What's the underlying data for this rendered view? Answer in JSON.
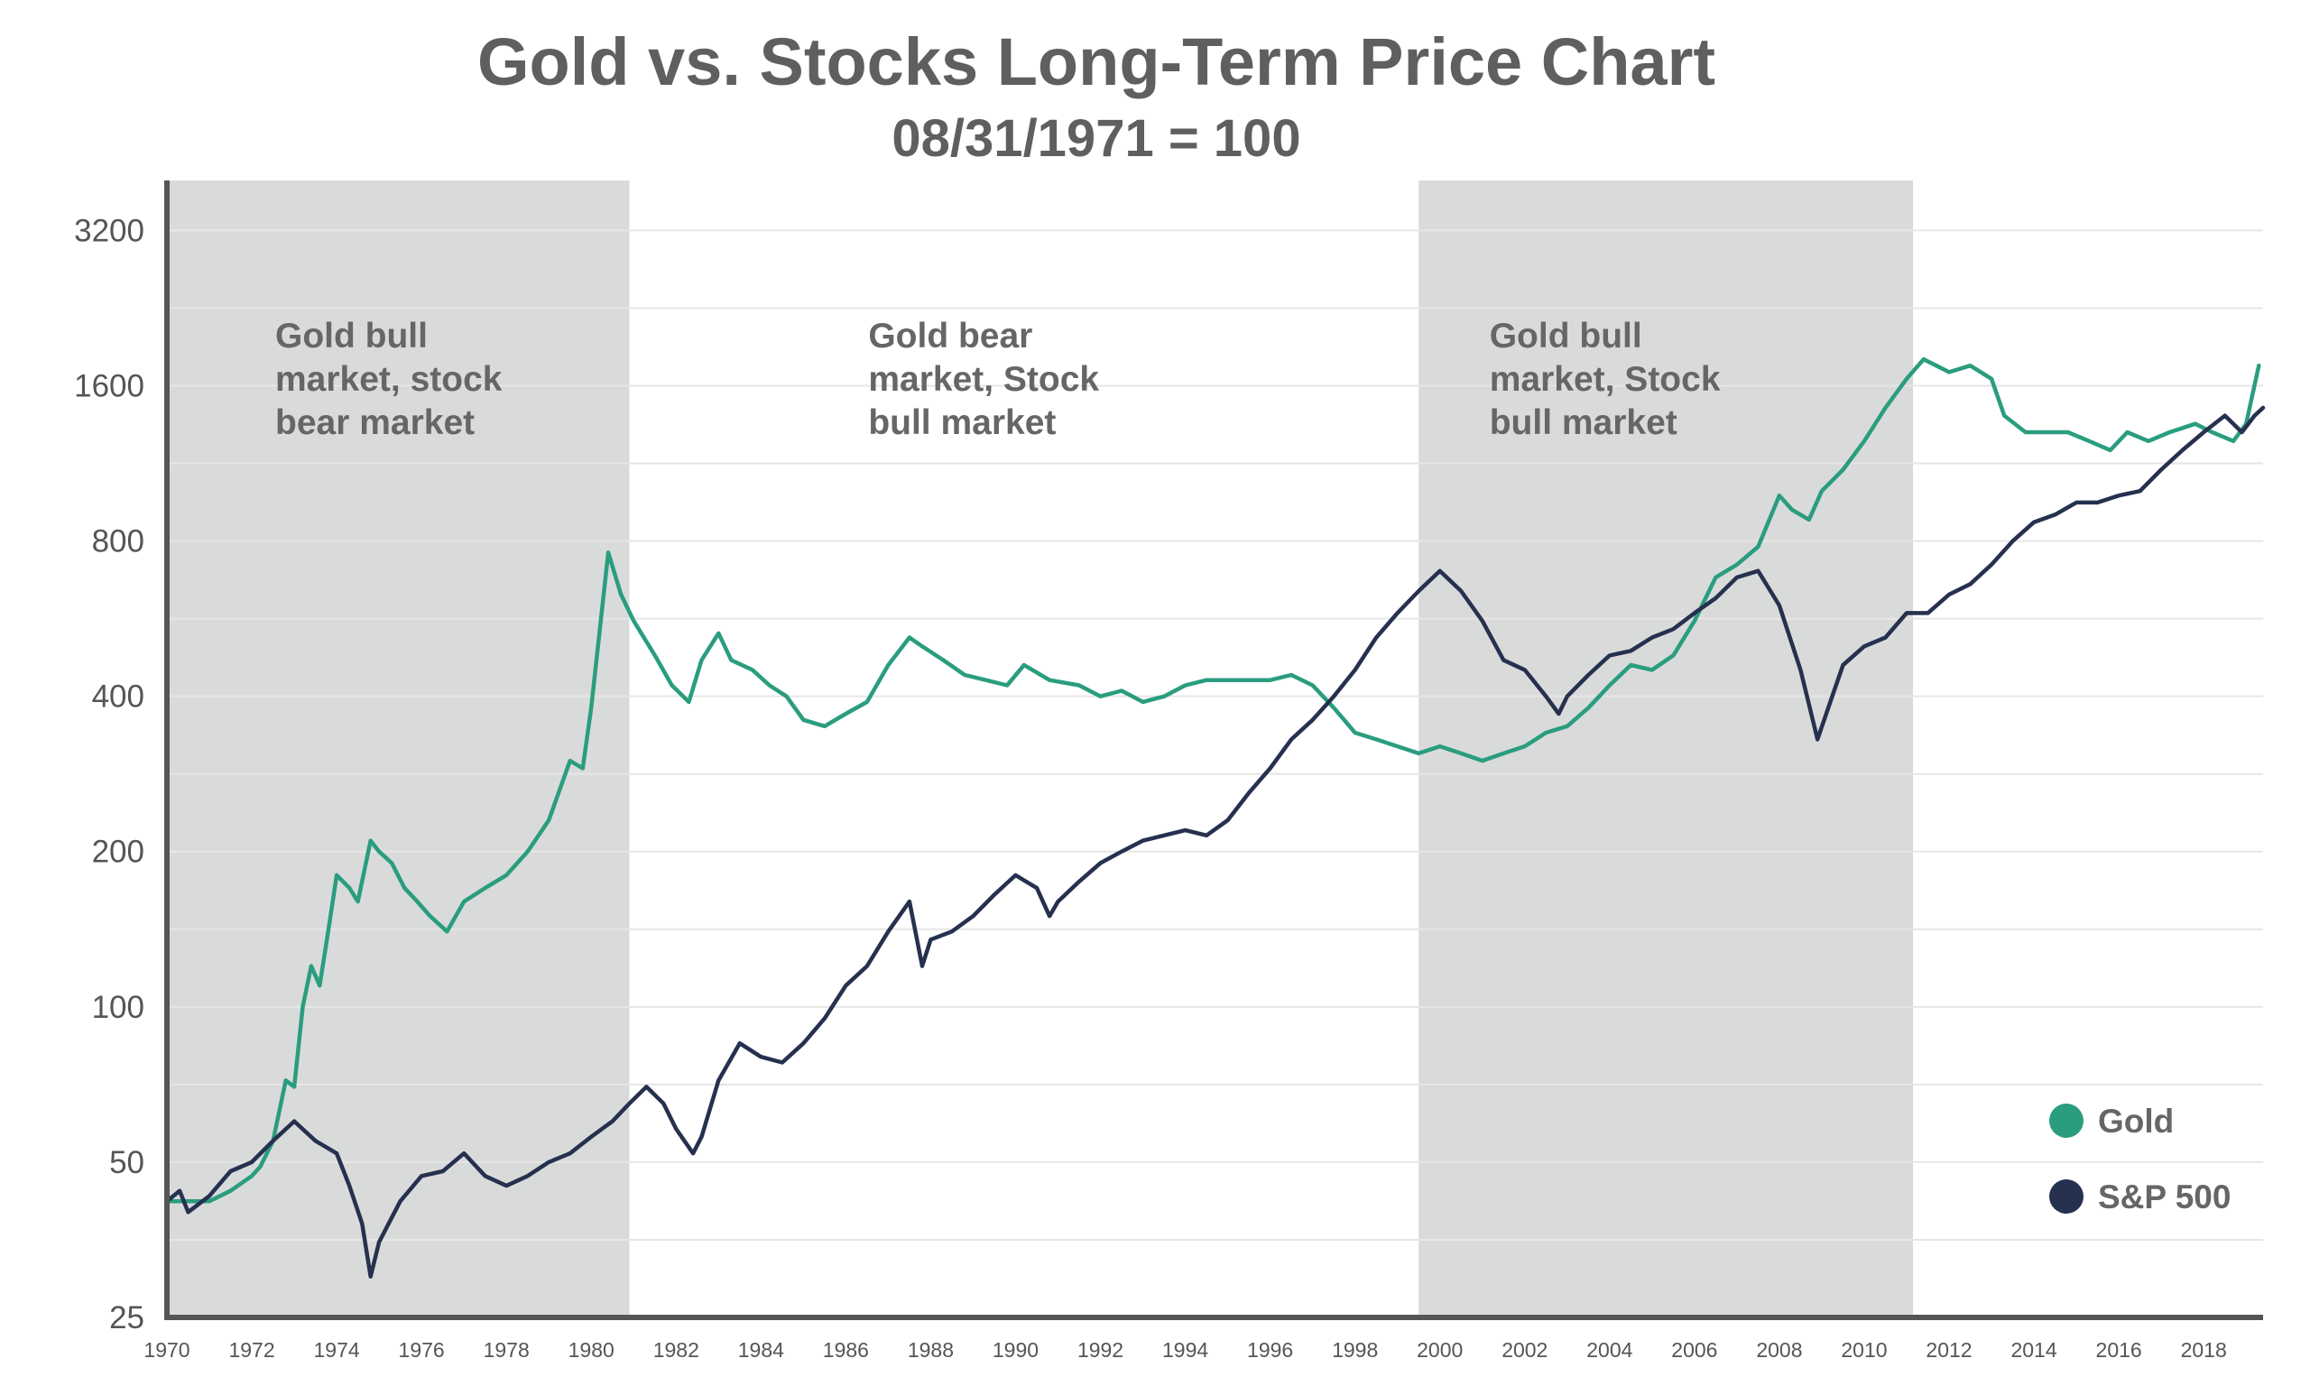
{
  "chart_data": {
    "type": "line",
    "title": "Gold vs. Stocks Long-Term Price Chart",
    "subtitle": "08/31/1971 = 100",
    "xlim": [
      1970,
      2019.4
    ],
    "ylim": [
      25,
      4000
    ],
    "y_scale": "log",
    "y_ticks": [
      25,
      50,
      100,
      200,
      400,
      800,
      1600,
      3200
    ],
    "x_ticks": [
      1970,
      1972,
      1974,
      1976,
      1978,
      1980,
      1982,
      1984,
      1986,
      1988,
      1990,
      1992,
      1994,
      1996,
      1998,
      2000,
      2002,
      2004,
      2006,
      2008,
      2010,
      2012,
      2014,
      2016,
      2018
    ],
    "grid": "horizontal",
    "legend_position": "bottom-right",
    "shaded_periods": [
      {
        "start": 1970,
        "end": 1980.9,
        "label_lines": [
          "Gold bull",
          "market, stock",
          "bear market"
        ]
      },
      {
        "start": 1999.5,
        "end": 2011.15,
        "label_lines": [
          "Gold bull",
          "market, Stock",
          "bull market"
        ]
      }
    ],
    "annotations": [
      {
        "x": 1987.7,
        "label_lines": [
          "Gold bear",
          "market, Stock",
          "bull market"
        ]
      }
    ],
    "series": [
      {
        "name": "Gold",
        "color": "#2a9d7f",
        "x": [
          1970,
          1970.5,
          1971,
          1971.5,
          1972,
          1972.2,
          1972.5,
          1972.8,
          1973,
          1973.2,
          1973.4,
          1973.6,
          1973.8,
          1974,
          1974.3,
          1974.5,
          1974.8,
          1975,
          1975.3,
          1975.6,
          1975.9,
          1976.2,
          1976.6,
          1977,
          1977.5,
          1978,
          1978.5,
          1979,
          1979.5,
          1979.8,
          1980,
          1980.4,
          1980.7,
          1981,
          1981.5,
          1981.9,
          1982.3,
          1982.6,
          1983,
          1983.3,
          1983.8,
          1984.2,
          1984.6,
          1985,
          1985.5,
          1986,
          1986.5,
          1987,
          1987.5,
          1987.8,
          1988.3,
          1988.8,
          1989.3,
          1989.8,
          1990.2,
          1990.8,
          1991.5,
          1992,
          1992.5,
          1993,
          1993.5,
          1994,
          1994.5,
          1995,
          1995.5,
          1996,
          1996.5,
          1997,
          1997.5,
          1998,
          1998.5,
          1999,
          1999.5,
          2000,
          2000.5,
          2001,
          2001.5,
          2002,
          2002.5,
          2003,
          2003.5,
          2004,
          2004.5,
          2005,
          2005.5,
          2006,
          2006.5,
          2007,
          2007.5,
          2008,
          2008.3,
          2008.7,
          2009,
          2009.5,
          2010,
          2010.5,
          2011,
          2011.4,
          2011.7,
          2012,
          2012.5,
          2013,
          2013.3,
          2013.8,
          2014.3,
          2014.8,
          2015.3,
          2015.8,
          2016.2,
          2016.7,
          2017.2,
          2017.8,
          2018.2,
          2018.7,
          2019,
          2019.3
        ],
        "values": [
          42,
          42,
          42,
          44,
          47,
          49,
          55,
          72,
          70,
          100,
          120,
          110,
          140,
          180,
          170,
          160,
          210,
          200,
          190,
          170,
          160,
          150,
          140,
          160,
          170,
          180,
          200,
          230,
          300,
          290,
          380,
          760,
          630,
          560,
          480,
          420,
          390,
          470,
          530,
          470,
          450,
          420,
          400,
          360,
          350,
          370,
          390,
          460,
          520,
          500,
          470,
          440,
          430,
          420,
          460,
          430,
          420,
          400,
          410,
          390,
          400,
          420,
          430,
          430,
          430,
          430,
          440,
          420,
          380,
          340,
          330,
          320,
          310,
          320,
          310,
          300,
          310,
          320,
          340,
          350,
          380,
          420,
          460,
          450,
          480,
          560,
          680,
          720,
          780,
          980,
          920,
          880,
          1000,
          1100,
          1250,
          1450,
          1650,
          1800,
          1750,
          1700,
          1750,
          1650,
          1400,
          1300,
          1300,
          1300,
          1250,
          1200,
          1300,
          1250,
          1300,
          1350,
          1300,
          1250,
          1350,
          1750
        ]
      },
      {
        "name": "S&P 500",
        "color": "#26304f",
        "x": [
          1970,
          1970.3,
          1970.5,
          1971,
          1971.5,
          1972,
          1972.5,
          1973,
          1973.5,
          1974,
          1974.3,
          1974.6,
          1974.8,
          1975,
          1975.5,
          1976,
          1976.5,
          1977,
          1977.5,
          1978,
          1978.5,
          1979,
          1979.5,
          1980,
          1980.5,
          1980.9,
          1981.3,
          1981.7,
          1982,
          1982.4,
          1982.6,
          1983,
          1983.5,
          1984,
          1984.5,
          1985,
          1985.5,
          1986,
          1986.5,
          1987,
          1987.5,
          1987.8,
          1988,
          1988.5,
          1989,
          1989.5,
          1990,
          1990.5,
          1990.8,
          1991,
          1991.5,
          1992,
          1992.5,
          1993,
          1993.5,
          1994,
          1994.5,
          1995,
          1995.5,
          1996,
          1996.5,
          1997,
          1997.5,
          1998,
          1998.5,
          1999,
          1999.5,
          2000,
          2000.5,
          2001,
          2001.5,
          2002,
          2002.5,
          2002.8,
          2003,
          2003.5,
          2004,
          2004.5,
          2005,
          2005.5,
          2006,
          2006.5,
          2007,
          2007.5,
          2008,
          2008.5,
          2008.9,
          2009.2,
          2009.5,
          2010,
          2010.5,
          2011,
          2011.5,
          2012,
          2012.5,
          2013,
          2013.5,
          2014,
          2014.5,
          2015,
          2015.5,
          2016,
          2016.5,
          2017,
          2017.5,
          2018,
          2018.5,
          2018.9,
          2019.2,
          2019.4
        ],
        "values": [
          42,
          44,
          40,
          43,
          48,
          50,
          55,
          60,
          55,
          52,
          45,
          38,
          30,
          35,
          42,
          47,
          48,
          52,
          47,
          45,
          47,
          50,
          52,
          56,
          60,
          65,
          70,
          65,
          58,
          52,
          56,
          72,
          85,
          80,
          78,
          85,
          95,
          110,
          120,
          140,
          160,
          120,
          135,
          140,
          150,
          165,
          180,
          170,
          150,
          160,
          175,
          190,
          200,
          210,
          215,
          220,
          215,
          230,
          260,
          290,
          330,
          360,
          400,
          450,
          520,
          580,
          640,
          700,
          640,
          560,
          470,
          450,
          400,
          370,
          400,
          440,
          480,
          490,
          520,
          540,
          580,
          620,
          680,
          700,
          600,
          450,
          330,
          390,
          460,
          500,
          520,
          580,
          580,
          630,
          660,
          720,
          800,
          870,
          900,
          950,
          950,
          980,
          1000,
          1100,
          1200,
          1300,
          1400,
          1300,
          1400,
          1450
        ]
      }
    ]
  }
}
